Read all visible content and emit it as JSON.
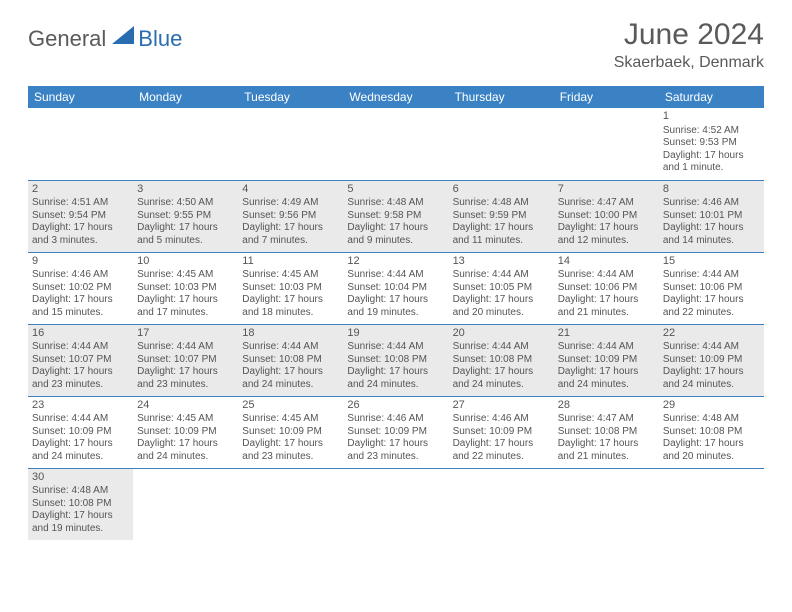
{
  "brand": {
    "part1": "General",
    "part2": "Blue"
  },
  "title": "June 2024",
  "location": "Skaerbaek, Denmark",
  "colors": {
    "header_bg": "#3b82c4",
    "header_text": "#ffffff",
    "rule": "#3b82c4",
    "shade": "#eaeaea",
    "text": "#555555",
    "brand_gray": "#5a5a5a",
    "brand_blue": "#2a6cb0"
  },
  "day_headers": [
    "Sunday",
    "Monday",
    "Tuesday",
    "Wednesday",
    "Thursday",
    "Friday",
    "Saturday"
  ],
  "weeks": [
    [
      null,
      null,
      null,
      null,
      null,
      null,
      {
        "n": "1",
        "sr": "Sunrise: 4:52 AM",
        "ss": "Sunset: 9:53 PM",
        "d1": "Daylight: 17 hours",
        "d2": "and 1 minute."
      }
    ],
    [
      {
        "n": "2",
        "sr": "Sunrise: 4:51 AM",
        "ss": "Sunset: 9:54 PM",
        "d1": "Daylight: 17 hours",
        "d2": "and 3 minutes."
      },
      {
        "n": "3",
        "sr": "Sunrise: 4:50 AM",
        "ss": "Sunset: 9:55 PM",
        "d1": "Daylight: 17 hours",
        "d2": "and 5 minutes."
      },
      {
        "n": "4",
        "sr": "Sunrise: 4:49 AM",
        "ss": "Sunset: 9:56 PM",
        "d1": "Daylight: 17 hours",
        "d2": "and 7 minutes."
      },
      {
        "n": "5",
        "sr": "Sunrise: 4:48 AM",
        "ss": "Sunset: 9:58 PM",
        "d1": "Daylight: 17 hours",
        "d2": "and 9 minutes."
      },
      {
        "n": "6",
        "sr": "Sunrise: 4:48 AM",
        "ss": "Sunset: 9:59 PM",
        "d1": "Daylight: 17 hours",
        "d2": "and 11 minutes."
      },
      {
        "n": "7",
        "sr": "Sunrise: 4:47 AM",
        "ss": "Sunset: 10:00 PM",
        "d1": "Daylight: 17 hours",
        "d2": "and 12 minutes."
      },
      {
        "n": "8",
        "sr": "Sunrise: 4:46 AM",
        "ss": "Sunset: 10:01 PM",
        "d1": "Daylight: 17 hours",
        "d2": "and 14 minutes."
      }
    ],
    [
      {
        "n": "9",
        "sr": "Sunrise: 4:46 AM",
        "ss": "Sunset: 10:02 PM",
        "d1": "Daylight: 17 hours",
        "d2": "and 15 minutes."
      },
      {
        "n": "10",
        "sr": "Sunrise: 4:45 AM",
        "ss": "Sunset: 10:03 PM",
        "d1": "Daylight: 17 hours",
        "d2": "and 17 minutes."
      },
      {
        "n": "11",
        "sr": "Sunrise: 4:45 AM",
        "ss": "Sunset: 10:03 PM",
        "d1": "Daylight: 17 hours",
        "d2": "and 18 minutes."
      },
      {
        "n": "12",
        "sr": "Sunrise: 4:44 AM",
        "ss": "Sunset: 10:04 PM",
        "d1": "Daylight: 17 hours",
        "d2": "and 19 minutes."
      },
      {
        "n": "13",
        "sr": "Sunrise: 4:44 AM",
        "ss": "Sunset: 10:05 PM",
        "d1": "Daylight: 17 hours",
        "d2": "and 20 minutes."
      },
      {
        "n": "14",
        "sr": "Sunrise: 4:44 AM",
        "ss": "Sunset: 10:06 PM",
        "d1": "Daylight: 17 hours",
        "d2": "and 21 minutes."
      },
      {
        "n": "15",
        "sr": "Sunrise: 4:44 AM",
        "ss": "Sunset: 10:06 PM",
        "d1": "Daylight: 17 hours",
        "d2": "and 22 minutes."
      }
    ],
    [
      {
        "n": "16",
        "sr": "Sunrise: 4:44 AM",
        "ss": "Sunset: 10:07 PM",
        "d1": "Daylight: 17 hours",
        "d2": "and 23 minutes."
      },
      {
        "n": "17",
        "sr": "Sunrise: 4:44 AM",
        "ss": "Sunset: 10:07 PM",
        "d1": "Daylight: 17 hours",
        "d2": "and 23 minutes."
      },
      {
        "n": "18",
        "sr": "Sunrise: 4:44 AM",
        "ss": "Sunset: 10:08 PM",
        "d1": "Daylight: 17 hours",
        "d2": "and 24 minutes."
      },
      {
        "n": "19",
        "sr": "Sunrise: 4:44 AM",
        "ss": "Sunset: 10:08 PM",
        "d1": "Daylight: 17 hours",
        "d2": "and 24 minutes."
      },
      {
        "n": "20",
        "sr": "Sunrise: 4:44 AM",
        "ss": "Sunset: 10:08 PM",
        "d1": "Daylight: 17 hours",
        "d2": "and 24 minutes."
      },
      {
        "n": "21",
        "sr": "Sunrise: 4:44 AM",
        "ss": "Sunset: 10:09 PM",
        "d1": "Daylight: 17 hours",
        "d2": "and 24 minutes."
      },
      {
        "n": "22",
        "sr": "Sunrise: 4:44 AM",
        "ss": "Sunset: 10:09 PM",
        "d1": "Daylight: 17 hours",
        "d2": "and 24 minutes."
      }
    ],
    [
      {
        "n": "23",
        "sr": "Sunrise: 4:44 AM",
        "ss": "Sunset: 10:09 PM",
        "d1": "Daylight: 17 hours",
        "d2": "and 24 minutes."
      },
      {
        "n": "24",
        "sr": "Sunrise: 4:45 AM",
        "ss": "Sunset: 10:09 PM",
        "d1": "Daylight: 17 hours",
        "d2": "and 24 minutes."
      },
      {
        "n": "25",
        "sr": "Sunrise: 4:45 AM",
        "ss": "Sunset: 10:09 PM",
        "d1": "Daylight: 17 hours",
        "d2": "and 23 minutes."
      },
      {
        "n": "26",
        "sr": "Sunrise: 4:46 AM",
        "ss": "Sunset: 10:09 PM",
        "d1": "Daylight: 17 hours",
        "d2": "and 23 minutes."
      },
      {
        "n": "27",
        "sr": "Sunrise: 4:46 AM",
        "ss": "Sunset: 10:09 PM",
        "d1": "Daylight: 17 hours",
        "d2": "and 22 minutes."
      },
      {
        "n": "28",
        "sr": "Sunrise: 4:47 AM",
        "ss": "Sunset: 10:08 PM",
        "d1": "Daylight: 17 hours",
        "d2": "and 21 minutes."
      },
      {
        "n": "29",
        "sr": "Sunrise: 4:48 AM",
        "ss": "Sunset: 10:08 PM",
        "d1": "Daylight: 17 hours",
        "d2": "and 20 minutes."
      }
    ],
    [
      {
        "n": "30",
        "sr": "Sunrise: 4:48 AM",
        "ss": "Sunset: 10:08 PM",
        "d1": "Daylight: 17 hours",
        "d2": "and 19 minutes."
      },
      null,
      null,
      null,
      null,
      null,
      null
    ]
  ]
}
